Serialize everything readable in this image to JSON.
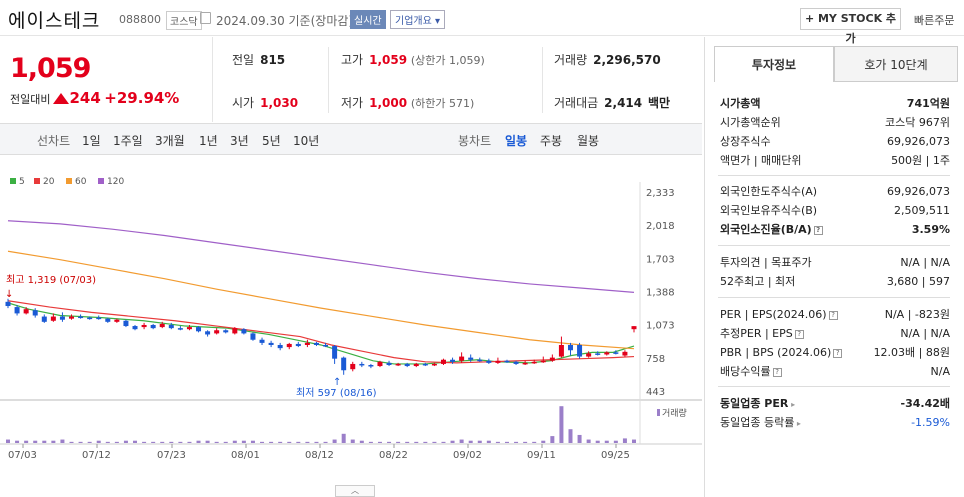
{
  "header": {
    "name": "에이스테크",
    "code": "088800",
    "market": "코스닥",
    "date": "2024.09.30 기준(장마감)",
    "live": "실시간",
    "corp_info": "기업개요",
    "mystock": "+ MY STOCK 추가",
    "quick_order": "빠른주문"
  },
  "price": {
    "current": "1,059",
    "change_label": "전일대비",
    "change": "244",
    "change_pct": "+29.94%"
  },
  "stats": {
    "prev_label": "전일",
    "prev": "815",
    "high_label": "고가",
    "high": "1,059",
    "high_limit": "(상한가 1,059)",
    "volume_label": "거래량",
    "volume": "2,296,570",
    "open_label": "시가",
    "open": "1,030",
    "low_label": "저가",
    "low": "1,000",
    "low_limit": "(하한가 571)",
    "amount_label": "거래대금",
    "amount": "2,414",
    "amount_unit": "백만"
  },
  "toolbar": {
    "line_label": "선차트",
    "line_periods": [
      "1일",
      "1주일",
      "3개월",
      "1년",
      "3년",
      "5년",
      "10년"
    ],
    "candle_label": "봉차트",
    "candle_periods": [
      "일봉",
      "주봉",
      "월봉"
    ],
    "selected": "일봉"
  },
  "legend": [
    {
      "label": "5",
      "color": "#3cb043"
    },
    {
      "label": "20",
      "color": "#e83a3a"
    },
    {
      "label": "60",
      "color": "#f29b30"
    },
    {
      "label": "120",
      "color": "#a060c8"
    }
  ],
  "chart_data": {
    "type": "candlestick",
    "y_ticks": [
      "2,333",
      "2,018",
      "1,703",
      "1,388",
      "1,073",
      "758",
      "443"
    ],
    "ylim": [
      443,
      2333
    ],
    "x_ticks": [
      "07/03",
      "07/12",
      "07/23",
      "08/01",
      "08/12",
      "08/22",
      "09/02",
      "09/11",
      "09/25"
    ],
    "high_annotation": "최고 1,319 (07/03)",
    "low_annotation": "최저 597 (08/16)",
    "volume_label": "거래량",
    "candles": [
      {
        "o": 1290,
        "c": 1250,
        "h": 1319,
        "l": 1230,
        "v": 3
      },
      {
        "o": 1240,
        "c": 1180,
        "h": 1260,
        "l": 1160,
        "v": 2
      },
      {
        "o": 1180,
        "c": 1220,
        "h": 1240,
        "l": 1170,
        "v": 2
      },
      {
        "o": 1210,
        "c": 1160,
        "h": 1230,
        "l": 1140,
        "v": 2
      },
      {
        "o": 1150,
        "c": 1100,
        "h": 1170,
        "l": 1090,
        "v": 2
      },
      {
        "o": 1110,
        "c": 1150,
        "h": 1180,
        "l": 1100,
        "v": 2
      },
      {
        "o": 1150,
        "c": 1120,
        "h": 1190,
        "l": 1100,
        "v": 3
      },
      {
        "o": 1130,
        "c": 1150,
        "h": 1170,
        "l": 1120,
        "v": 1
      },
      {
        "o": 1150,
        "c": 1140,
        "h": 1170,
        "l": 1130,
        "v": 1
      },
      {
        "o": 1140,
        "c": 1130,
        "h": 1150,
        "l": 1120,
        "v": 1
      },
      {
        "o": 1140,
        "c": 1130,
        "h": 1160,
        "l": 1120,
        "v": 2
      },
      {
        "o": 1130,
        "c": 1100,
        "h": 1140,
        "l": 1090,
        "v": 1
      },
      {
        "o": 1100,
        "c": 1120,
        "h": 1130,
        "l": 1090,
        "v": 1
      },
      {
        "o": 1110,
        "c": 1060,
        "h": 1120,
        "l": 1050,
        "v": 2
      },
      {
        "o": 1060,
        "c": 1030,
        "h": 1070,
        "l": 1020,
        "v": 2
      },
      {
        "o": 1050,
        "c": 1070,
        "h": 1090,
        "l": 1030,
        "v": 1
      },
      {
        "o": 1070,
        "c": 1040,
        "h": 1080,
        "l": 1030,
        "v": 1
      },
      {
        "o": 1050,
        "c": 1080,
        "h": 1100,
        "l": 1040,
        "v": 1
      },
      {
        "o": 1070,
        "c": 1040,
        "h": 1090,
        "l": 1030,
        "v": 1
      },
      {
        "o": 1040,
        "c": 1030,
        "h": 1060,
        "l": 1020,
        "v": 1
      },
      {
        "o": 1030,
        "c": 1050,
        "h": 1070,
        "l": 1020,
        "v": 1
      },
      {
        "o": 1050,
        "c": 1010,
        "h": 1060,
        "l": 1000,
        "v": 2
      },
      {
        "o": 1010,
        "c": 980,
        "h": 1020,
        "l": 960,
        "v": 2
      },
      {
        "o": 990,
        "c": 1020,
        "h": 1040,
        "l": 980,
        "v": 1
      },
      {
        "o": 1020,
        "c": 1000,
        "h": 1030,
        "l": 990,
        "v": 1
      },
      {
        "o": 990,
        "c": 1040,
        "h": 1050,
        "l": 980,
        "v": 2
      },
      {
        "o": 1030,
        "c": 990,
        "h": 1040,
        "l": 980,
        "v": 2
      },
      {
        "o": 990,
        "c": 930,
        "h": 1000,
        "l": 920,
        "v": 2
      },
      {
        "o": 930,
        "c": 900,
        "h": 950,
        "l": 880,
        "v": 1
      },
      {
        "o": 900,
        "c": 880,
        "h": 920,
        "l": 860,
        "v": 1
      },
      {
        "o": 880,
        "c": 850,
        "h": 900,
        "l": 830,
        "v": 1
      },
      {
        "o": 860,
        "c": 890,
        "h": 900,
        "l": 840,
        "v": 1
      },
      {
        "o": 890,
        "c": 870,
        "h": 910,
        "l": 860,
        "v": 1
      },
      {
        "o": 880,
        "c": 900,
        "h": 930,
        "l": 860,
        "v": 1
      },
      {
        "o": 900,
        "c": 880,
        "h": 910,
        "l": 870,
        "v": 1
      },
      {
        "o": 880,
        "c": 870,
        "h": 900,
        "l": 860,
        "v": 1
      },
      {
        "o": 870,
        "c": 750,
        "h": 880,
        "l": 700,
        "v": 3
      },
      {
        "o": 760,
        "c": 640,
        "h": 770,
        "l": 597,
        "v": 8
      },
      {
        "o": 650,
        "c": 700,
        "h": 720,
        "l": 630,
        "v": 3
      },
      {
        "o": 700,
        "c": 690,
        "h": 720,
        "l": 670,
        "v": 2
      },
      {
        "o": 690,
        "c": 680,
        "h": 700,
        "l": 660,
        "v": 1
      },
      {
        "o": 680,
        "c": 720,
        "h": 730,
        "l": 670,
        "v": 1
      },
      {
        "o": 710,
        "c": 690,
        "h": 730,
        "l": 680,
        "v": 1
      },
      {
        "o": 690,
        "c": 700,
        "h": 710,
        "l": 680,
        "v": 1
      },
      {
        "o": 700,
        "c": 680,
        "h": 710,
        "l": 670,
        "v": 1
      },
      {
        "o": 680,
        "c": 700,
        "h": 710,
        "l": 670,
        "v": 1
      },
      {
        "o": 700,
        "c": 690,
        "h": 710,
        "l": 680,
        "v": 1
      },
      {
        "o": 690,
        "c": 700,
        "h": 710,
        "l": 680,
        "v": 1
      },
      {
        "o": 700,
        "c": 740,
        "h": 750,
        "l": 690,
        "v": 1
      },
      {
        "o": 740,
        "c": 720,
        "h": 760,
        "l": 700,
        "v": 2
      },
      {
        "o": 730,
        "c": 770,
        "h": 810,
        "l": 710,
        "v": 3
      },
      {
        "o": 760,
        "c": 740,
        "h": 790,
        "l": 720,
        "v": 2
      },
      {
        "o": 740,
        "c": 730,
        "h": 760,
        "l": 720,
        "v": 2
      },
      {
        "o": 730,
        "c": 710,
        "h": 750,
        "l": 700,
        "v": 2
      },
      {
        "o": 710,
        "c": 730,
        "h": 760,
        "l": 700,
        "v": 1
      },
      {
        "o": 730,
        "c": 720,
        "h": 740,
        "l": 710,
        "v": 1
      },
      {
        "o": 720,
        "c": 700,
        "h": 730,
        "l": 690,
        "v": 1
      },
      {
        "o": 700,
        "c": 710,
        "h": 730,
        "l": 690,
        "v": 1
      },
      {
        "o": 710,
        "c": 720,
        "h": 740,
        "l": 700,
        "v": 1
      },
      {
        "o": 720,
        "c": 730,
        "h": 770,
        "l": 710,
        "v": 2
      },
      {
        "o": 730,
        "c": 760,
        "h": 790,
        "l": 720,
        "v": 6
      },
      {
        "o": 770,
        "c": 880,
        "h": 960,
        "l": 760,
        "v": 32
      },
      {
        "o": 880,
        "c": 830,
        "h": 900,
        "l": 780,
        "v": 12
      },
      {
        "o": 880,
        "c": 770,
        "h": 900,
        "l": 750,
        "v": 7
      },
      {
        "o": 770,
        "c": 800,
        "h": 820,
        "l": 760,
        "v": 3
      },
      {
        "o": 800,
        "c": 790,
        "h": 820,
        "l": 780,
        "v": 2
      },
      {
        "o": 790,
        "c": 810,
        "h": 820,
        "l": 780,
        "v": 2
      },
      {
        "o": 810,
        "c": 800,
        "h": 830,
        "l": 790,
        "v": 2
      },
      {
        "o": 780,
        "c": 815,
        "h": 830,
        "l": 770,
        "v": 4
      },
      {
        "o": 1030,
        "c": 1059,
        "h": 1059,
        "l": 1000,
        "v": 3
      }
    ],
    "ma": {
      "5": [
        [
          0.0,
          1280
        ],
        [
          0.04,
          1220
        ],
        [
          0.1,
          1160
        ],
        [
          0.18,
          1140
        ],
        [
          0.26,
          1110
        ],
        [
          0.34,
          1060
        ],
        [
          0.42,
          1040
        ],
        [
          0.46,
          1010
        ],
        [
          0.5,
          980
        ],
        [
          0.55,
          930
        ],
        [
          0.6,
          880
        ],
        [
          0.66,
          790
        ],
        [
          0.7,
          730
        ],
        [
          0.74,
          700
        ],
        [
          0.8,
          700
        ],
        [
          0.85,
          720
        ],
        [
          0.9,
          740
        ],
        [
          0.94,
          720
        ],
        [
          1.0,
          710
        ],
        [
          1.04,
          730
        ],
        [
          1.08,
          780
        ],
        [
          1.12,
          810
        ],
        [
          1.16,
          810
        ],
        [
          1.2,
          870
        ]
      ],
      "20": [
        [
          0.0,
          1300
        ],
        [
          0.08,
          1240
        ],
        [
          0.16,
          1190
        ],
        [
          0.24,
          1150
        ],
        [
          0.32,
          1110
        ],
        [
          0.4,
          1060
        ],
        [
          0.48,
          1010
        ],
        [
          0.56,
          960
        ],
        [
          0.62,
          880
        ],
        [
          0.68,
          820
        ],
        [
          0.74,
          760
        ],
        [
          0.8,
          720
        ],
        [
          0.86,
          710
        ],
        [
          0.92,
          720
        ],
        [
          0.98,
          730
        ],
        [
          1.04,
          740
        ],
        [
          1.1,
          750
        ],
        [
          1.16,
          760
        ],
        [
          1.2,
          770
        ]
      ],
      "60": [
        [
          0.0,
          1770
        ],
        [
          0.1,
          1690
        ],
        [
          0.2,
          1600
        ],
        [
          0.3,
          1510
        ],
        [
          0.4,
          1410
        ],
        [
          0.5,
          1320
        ],
        [
          0.6,
          1230
        ],
        [
          0.7,
          1150
        ],
        [
          0.8,
          1070
        ],
        [
          0.9,
          1000
        ],
        [
          1.0,
          930
        ],
        [
          1.1,
          880
        ],
        [
          1.2,
          845
        ]
      ],
      "120": [
        [
          0.0,
          2060
        ],
        [
          0.1,
          2030
        ],
        [
          0.2,
          1980
        ],
        [
          0.3,
          1920
        ],
        [
          0.4,
          1850
        ],
        [
          0.5,
          1780
        ],
        [
          0.6,
          1710
        ],
        [
          0.7,
          1640
        ],
        [
          0.8,
          1570
        ],
        [
          0.9,
          1510
        ],
        [
          1.0,
          1460
        ],
        [
          1.1,
          1420
        ],
        [
          1.2,
          1380
        ]
      ]
    }
  },
  "sidebar": {
    "tabs": [
      "투자정보",
      "호가 10단계"
    ],
    "g1": [
      {
        "k": "시가총액",
        "v": "741억원",
        "kb": true,
        "vb": true
      },
      {
        "k": "시가총액순위",
        "v": "코스닥 967위"
      },
      {
        "k": "상장주식수",
        "v": "69,926,073"
      },
      {
        "k": "액면가 | 매매단위",
        "v": "500원 | 1주"
      }
    ],
    "g2": [
      {
        "k": "외국인한도주식수(A)",
        "v": "69,926,073"
      },
      {
        "k": "외국인보유주식수(B)",
        "v": "2,509,511"
      },
      {
        "k": "외국인소진율(B/A)",
        "v": "3.59%",
        "kb": true,
        "vb": true,
        "q": true
      }
    ],
    "g3": [
      {
        "k": "투자의견 | 목표주가",
        "v": "N/A | N/A"
      },
      {
        "k": "52주최고 | 최저",
        "v": "3,680 | 597"
      }
    ],
    "g4": [
      {
        "k": "PER | EPS(2024.06)",
        "v": "N/A | -823원",
        "q": true
      },
      {
        "k": "추정PER | EPS",
        "v": "N/A | N/A",
        "q": true
      },
      {
        "k": "PBR | BPS (2024.06)",
        "v": "12.03배 | 88원",
        "q": true
      },
      {
        "k": "배당수익률",
        "v": "N/A",
        "q": true
      }
    ],
    "g5": [
      {
        "k": "동일업종 PER",
        "v": "-34.42배",
        "kb": true,
        "vb": true,
        "a": true
      },
      {
        "k": "동일업종 등락률",
        "v": "-1.59%",
        "bl": true,
        "a": true
      }
    ]
  }
}
